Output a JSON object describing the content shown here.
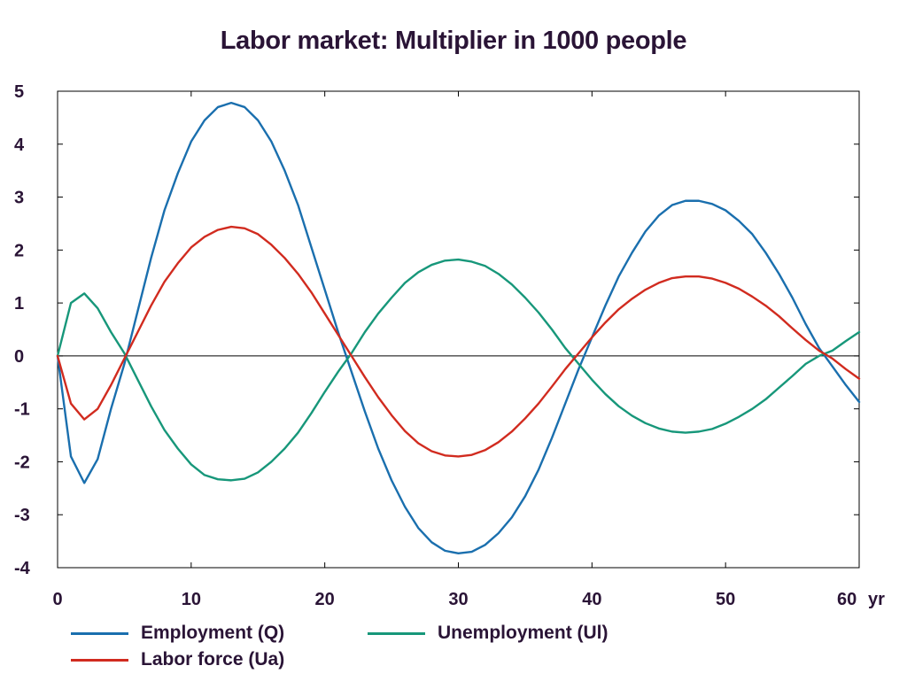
{
  "chart_data": {
    "type": "line",
    "title": "Labor market: Multiplier in 1000 people",
    "xlabel": "",
    "ylabel": "",
    "x_unit_label": "yr",
    "xlim": [
      0,
      60
    ],
    "ylim": [
      -4,
      5
    ],
    "x_ticks": [
      0,
      10,
      20,
      30,
      40,
      50,
      60
    ],
    "y_ticks": [
      -4,
      -3,
      -2,
      -1,
      0,
      1,
      2,
      3,
      4,
      5
    ],
    "grid": false,
    "legend_position": "bottom",
    "zero_line": true,
    "x": [
      0,
      1,
      2,
      3,
      4,
      5,
      6,
      7,
      8,
      9,
      10,
      11,
      12,
      13,
      14,
      15,
      16,
      17,
      18,
      19,
      20,
      21,
      22,
      23,
      24,
      25,
      26,
      27,
      28,
      29,
      30,
      31,
      32,
      33,
      34,
      35,
      36,
      37,
      38,
      39,
      40,
      41,
      42,
      43,
      44,
      45,
      46,
      47,
      48,
      49,
      50,
      51,
      52,
      53,
      54,
      55,
      56,
      57,
      58,
      59,
      60
    ],
    "series": [
      {
        "name": "Employment (Q)",
        "color": "#1a6fae",
        "values": [
          0,
          -1.9,
          -2.4,
          -1.95,
          -1.0,
          -0.15,
          0.85,
          1.85,
          2.75,
          3.45,
          4.05,
          4.45,
          4.7,
          4.78,
          4.7,
          4.45,
          4.05,
          3.5,
          2.85,
          2.05,
          1.25,
          0.45,
          -0.3,
          -1.05,
          -1.75,
          -2.35,
          -2.85,
          -3.25,
          -3.52,
          -3.68,
          -3.73,
          -3.7,
          -3.57,
          -3.35,
          -3.05,
          -2.65,
          -2.15,
          -1.55,
          -0.9,
          -0.25,
          0.35,
          0.95,
          1.5,
          1.95,
          2.35,
          2.65,
          2.85,
          2.93,
          2.93,
          2.87,
          2.75,
          2.55,
          2.3,
          1.95,
          1.55,
          1.1,
          0.6,
          0.15,
          -0.2,
          -0.55,
          -0.87
        ]
      },
      {
        "name": "Unemployment (Ul)",
        "color": "#17977a",
        "values": [
          0,
          1.0,
          1.18,
          0.9,
          0.45,
          0.05,
          -0.45,
          -0.95,
          -1.4,
          -1.75,
          -2.05,
          -2.25,
          -2.33,
          -2.35,
          -2.32,
          -2.2,
          -2.0,
          -1.75,
          -1.45,
          -1.08,
          -0.68,
          -0.3,
          0.05,
          0.45,
          0.8,
          1.1,
          1.38,
          1.58,
          1.72,
          1.8,
          1.82,
          1.78,
          1.7,
          1.55,
          1.35,
          1.1,
          0.82,
          0.5,
          0.15,
          -0.15,
          -0.45,
          -0.72,
          -0.95,
          -1.13,
          -1.27,
          -1.37,
          -1.43,
          -1.45,
          -1.43,
          -1.38,
          -1.28,
          -1.15,
          -1.0,
          -0.82,
          -0.6,
          -0.38,
          -0.15,
          0.0,
          0.1,
          0.28,
          0.45
        ]
      },
      {
        "name": "Labor force (Ua)",
        "color": "#d12b1f",
        "values": [
          0,
          -0.9,
          -1.2,
          -1.0,
          -0.55,
          -0.05,
          0.45,
          0.95,
          1.4,
          1.75,
          2.05,
          2.25,
          2.38,
          2.44,
          2.41,
          2.3,
          2.1,
          1.85,
          1.55,
          1.2,
          0.8,
          0.4,
          0.0,
          -0.4,
          -0.78,
          -1.12,
          -1.42,
          -1.65,
          -1.8,
          -1.88,
          -1.9,
          -1.87,
          -1.78,
          -1.63,
          -1.43,
          -1.18,
          -0.9,
          -0.58,
          -0.25,
          0.05,
          0.35,
          0.63,
          0.88,
          1.08,
          1.25,
          1.38,
          1.47,
          1.5,
          1.5,
          1.46,
          1.38,
          1.27,
          1.12,
          0.95,
          0.75,
          0.52,
          0.3,
          0.1,
          -0.05,
          -0.25,
          -0.43
        ]
      }
    ]
  }
}
